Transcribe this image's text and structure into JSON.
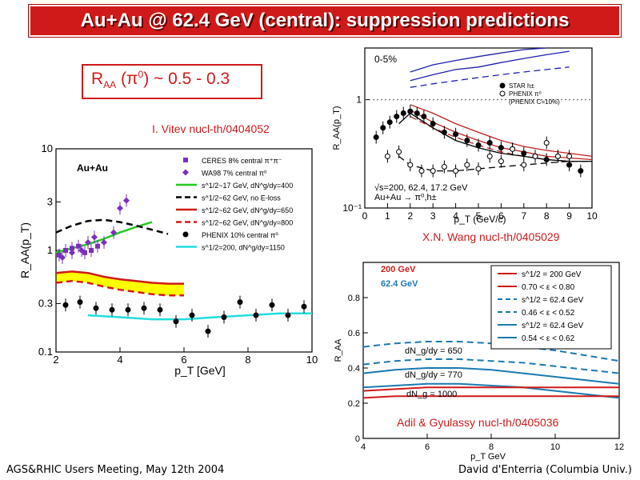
{
  "slide": {
    "title": "Au+Au @ 62.4 GeV (central): suppression predictions",
    "callout": {
      "base": "R",
      "sub": "AA",
      "paren": " (π",
      "sup": "0",
      "rest": ") ~ 0.5 - 0.3"
    },
    "ref_vitev": "I. Vitev nucl-th/0404052",
    "ref_wang": "X.N. Wang nucl-th/0405029",
    "ref_adil": "Adil & Gyulassy nucl-th/0405036",
    "footer_left": "AGS&RHIC Users Meeting, May 12th 2004",
    "footer_right": "David d'Enterria (Columbia Univ.)",
    "colors": {
      "accent": "#d01a1a",
      "title_text": "#ffffff"
    }
  },
  "chart_data": [
    {
      "type": "line",
      "panel": "vitev",
      "label": "Au+Au",
      "xlabel": "p_T [GeV]",
      "ylabel": "R_AA(p_T)",
      "x_ticks": [
        "2",
        "4",
        "6",
        "8",
        "10"
      ],
      "y_ticks": [
        "0.1",
        "0.3",
        "1",
        "3",
        "10"
      ],
      "xlim": [
        2,
        10
      ],
      "ylim": [
        0.1,
        10
      ],
      "yscale": "log",
      "legend": [
        {
          "text": "CERES 8% central π⁺π⁻",
          "color": "#7b2fbf",
          "marker": "square"
        },
        {
          "text": "WA98 7% central π⁰",
          "color": "#7b2fbf",
          "marker": "diamond"
        },
        {
          "text": "s^1/2~17 GeV, dN^g/dy=400",
          "color": "#22cc22",
          "style": "solid"
        },
        {
          "text": "s^1/2~62 GeV, no E-loss",
          "color": "#000000",
          "style": "dashed"
        },
        {
          "text": "s^1/2~62 GeV, dN^g/dy=650",
          "color": "#d01a1a",
          "style": "solid"
        },
        {
          "text": "s^1/2~62 GeV, dN^g/dy=800",
          "color": "#d01a1a",
          "style": "dashed"
        },
        {
          "text": "PHENIX 10% central π⁰",
          "color": "#000000",
          "marker": "circle"
        },
        {
          "text": "s^1/2=200, dN^g/dy=1150",
          "color": "#22dddd",
          "style": "solid"
        }
      ],
      "series": [
        {
          "x": [
            2.0,
            2.5,
            3.0,
            3.5,
            4.0,
            4.5,
            5.0
          ],
          "y": [
            0.95,
            1.05,
            1.15,
            1.3,
            1.5,
            1.7,
            1.9
          ],
          "color": "#22cc22",
          "style": "solid",
          "width": 2.5
        },
        {
          "x": [
            2.0,
            2.5,
            3.0,
            3.5,
            4.0,
            4.5,
            5.0,
            5.5
          ],
          "y": [
            1.5,
            1.75,
            1.95,
            2.0,
            1.9,
            1.75,
            1.6,
            1.45
          ],
          "color": "#000000",
          "style": "dashed",
          "width": 2.5
        },
        {
          "x": [
            2.0,
            2.5,
            3.0,
            3.5,
            4.0,
            4.5,
            5.0,
            5.5,
            6.0
          ],
          "y": [
            0.6,
            0.62,
            0.6,
            0.55,
            0.52,
            0.5,
            0.48,
            0.47,
            0.47
          ],
          "color": "#d01a1a",
          "style": "solid",
          "width": 2.5
        },
        {
          "x": [
            2.0,
            2.5,
            3.0,
            3.5,
            4.0,
            4.5,
            5.0,
            5.5,
            6.0
          ],
          "y": [
            0.48,
            0.5,
            0.48,
            0.44,
            0.41,
            0.39,
            0.37,
            0.36,
            0.36
          ],
          "color": "#d01a1a",
          "style": "dashed",
          "width": 2.5
        },
        {
          "x": [
            3.0,
            4.0,
            5.0,
            6.0,
            7.0,
            8.0,
            9.0,
            10.0
          ],
          "y": [
            0.23,
            0.22,
            0.21,
            0.21,
            0.22,
            0.23,
            0.24,
            0.24
          ],
          "color": "#22dddd",
          "style": "solid",
          "width": 2.5
        }
      ],
      "band": {
        "x": [
          2.0,
          2.5,
          3.0,
          3.5,
          4.0,
          4.5,
          5.0,
          5.5,
          6.0
        ],
        "upper": [
          0.6,
          0.62,
          0.6,
          0.55,
          0.52,
          0.5,
          0.48,
          0.47,
          0.47
        ],
        "lower": [
          0.48,
          0.5,
          0.48,
          0.44,
          0.41,
          0.39,
          0.37,
          0.36,
          0.36
        ],
        "color": "#ffff00"
      },
      "points": [
        {
          "x": [
            2.1,
            2.3,
            2.5,
            2.7,
            2.9,
            3.1,
            3.3
          ],
          "y": [
            0.9,
            1.0,
            1.05,
            1.1,
            0.95,
            1.0,
            1.1
          ],
          "color": "#7b2fbf",
          "marker": "square"
        },
        {
          "x": [
            2.2,
            2.5,
            2.8,
            3.0,
            3.2,
            3.5,
            3.8,
            4.0,
            4.2
          ],
          "y": [
            0.85,
            0.95,
            1.0,
            1.2,
            1.35,
            1.2,
            1.5,
            2.6,
            3.1
          ],
          "color": "#7b2fbf",
          "marker": "diamond"
        },
        {
          "x": [
            2.3,
            2.75,
            3.25,
            3.75,
            4.25,
            4.75,
            5.25,
            5.75,
            6.25,
            6.75,
            7.25,
            7.75,
            8.25,
            8.75,
            9.25,
            9.75
          ],
          "y": [
            0.29,
            0.31,
            0.27,
            0.26,
            0.26,
            0.27,
            0.26,
            0.2,
            0.23,
            0.16,
            0.22,
            0.31,
            0.23,
            0.29,
            0.23,
            0.28
          ],
          "color": "#000000",
          "marker": "circle"
        }
      ]
    },
    {
      "type": "line",
      "panel": "wang",
      "label": "0-5%",
      "xlabel": "p_T (GeV/c)",
      "ylabel": "R_AA(p_T)",
      "x_ticks": [
        "0",
        "1",
        "2",
        "3",
        "4",
        "5",
        "6",
        "7",
        "8",
        "9",
        "10"
      ],
      "y_ticks": [
        "10⁻¹",
        "1"
      ],
      "xlim": [
        0,
        10
      ],
      "ylim": [
        0.1,
        3
      ],
      "yscale": "log",
      "legend": [
        {
          "text": "STAR h±",
          "color": "#000000",
          "marker": "circle"
        },
        {
          "text": "PHENIX π⁰",
          "color": "#000000",
          "marker": "open-circle"
        },
        {
          "text": "(PHENIX C=10%)",
          "color": "#000000"
        }
      ],
      "annotation": "√s=200, 62.4, 17.2 GeV",
      "annotation2": "Au+Au → π⁰,h±",
      "series": [
        {
          "x": [
            2,
            3,
            4,
            5,
            6,
            7,
            8
          ],
          "y": [
            1.8,
            2.1,
            2.3,
            2.5,
            2.7,
            2.9,
            3.0
          ],
          "color": "#2020b0",
          "style": "solid"
        },
        {
          "x": [
            2,
            3,
            4,
            5,
            6,
            7,
            8,
            9
          ],
          "y": [
            1.5,
            1.7,
            1.9,
            2.0,
            2.2,
            2.4,
            2.6,
            2.8
          ],
          "color": "#2020b0",
          "style": "solid"
        },
        {
          "x": [
            2,
            3,
            4,
            5,
            6,
            7,
            8,
            9
          ],
          "y": [
            1.3,
            1.4,
            1.5,
            1.6,
            1.7,
            1.8,
            1.9,
            2.0
          ],
          "color": "#2020b0",
          "style": "dashed"
        },
        {
          "x": [
            2,
            3,
            4,
            5,
            6,
            7,
            8,
            9,
            10
          ],
          "y": [
            0.9,
            0.75,
            0.6,
            0.5,
            0.42,
            0.37,
            0.34,
            0.32,
            0.3
          ],
          "color": "#c02020",
          "style": "solid"
        },
        {
          "x": [
            2,
            3,
            4,
            5,
            6,
            7,
            8,
            9,
            10
          ],
          "y": [
            0.8,
            0.62,
            0.5,
            0.42,
            0.36,
            0.33,
            0.3,
            0.29,
            0.28
          ],
          "color": "#c02020",
          "style": "solid"
        },
        {
          "x": [
            2,
            3,
            4,
            5,
            6,
            7,
            8,
            9,
            10
          ],
          "y": [
            0.7,
            0.55,
            0.45,
            0.38,
            0.33,
            0.3,
            0.28,
            0.27,
            0.27
          ],
          "color": "#c02020",
          "style": "dashed"
        },
        {
          "x": [
            1.5,
            2,
            3,
            4,
            5,
            6,
            7,
            8,
            9,
            10
          ],
          "y": [
            0.6,
            0.75,
            0.55,
            0.42,
            0.36,
            0.32,
            0.3,
            0.28,
            0.27,
            0.27
          ],
          "color": "#000000",
          "style": "solid"
        },
        {
          "x": [
            1.5,
            2,
            3,
            4,
            5,
            6,
            7,
            8,
            9,
            10
          ],
          "y": [
            0.3,
            0.25,
            0.22,
            0.22,
            0.23,
            0.24,
            0.25,
            0.26,
            0.27,
            0.27
          ],
          "color": "#000000",
          "style": "dashed"
        }
      ],
      "points": [
        {
          "x": [
            0.5,
            0.8,
            1.1,
            1.4,
            1.7,
            2.0,
            2.3,
            2.6,
            3.0,
            3.5,
            4.0,
            4.5,
            5.0,
            5.5,
            6.0,
            6.5,
            7.0,
            7.5,
            8.0,
            8.5,
            9.0,
            9.5
          ],
          "y": [
            0.45,
            0.55,
            0.62,
            0.7,
            0.75,
            0.78,
            0.75,
            0.7,
            0.6,
            0.5,
            0.48,
            0.42,
            0.38,
            0.4,
            0.36,
            0.35,
            0.32,
            0.3,
            0.28,
            0.3,
            0.25,
            0.22
          ],
          "color": "#000000",
          "marker": "circle"
        },
        {
          "x": [
            1.0,
            1.5,
            2.0,
            2.5,
            3.0,
            3.5,
            4.0,
            4.5,
            5.0,
            5.5,
            6.0,
            6.5,
            7.0,
            7.5,
            8.0,
            8.5,
            9.0
          ],
          "y": [
            0.3,
            0.33,
            0.25,
            0.22,
            0.22,
            0.24,
            0.22,
            0.25,
            0.23,
            0.3,
            0.27,
            0.35,
            0.25,
            0.3,
            0.4,
            0.3,
            0.3
          ],
          "color": "#000000",
          "marker": "open-circle"
        }
      ]
    },
    {
      "type": "line",
      "panel": "adil",
      "xlabel": "p_T GeV",
      "ylabel": "R_AA",
      "x_ticks": [
        "4",
        "6",
        "8",
        "10",
        "12"
      ],
      "y_ticks": [
        "0",
        "0.2",
        "0.4",
        "0.6",
        "0.8"
      ],
      "xlim": [
        4,
        12
      ],
      "ylim": [
        0,
        1
      ],
      "yscale": "linear",
      "header_red": "200 GeV",
      "header_blue": "62.4 GeV",
      "legend": [
        {
          "text": "s^1/2 = 200 GeV",
          "color": "#d01a1a",
          "style": "solid"
        },
        {
          "text": "0.70 < ε < 0.80",
          "color": "#d01a1a",
          "style": "solid"
        },
        {
          "text": "s^1/2 = 62.4 GeV",
          "color": "#1a7ab0",
          "style": "dashed"
        },
        {
          "text": "0.46 < ε < 0.52",
          "color": "#1a7ab0",
          "style": "dashed"
        },
        {
          "text": "s^1/2 = 62.4 GeV",
          "color": "#1a7ab0",
          "style": "solid"
        },
        {
          "text": "0.54 < ε < 0.62",
          "color": "#1a7ab0",
          "style": "solid"
        }
      ],
      "labels": [
        "dN_g/dy = 650",
        "dN_g/dy = 770",
        "dN_g = 1000"
      ],
      "series": [
        {
          "x": [
            4,
            5,
            6,
            7,
            8,
            9,
            10,
            11,
            12
          ],
          "y": [
            0.52,
            0.54,
            0.55,
            0.55,
            0.54,
            0.52,
            0.5,
            0.47,
            0.44
          ],
          "color": "#1a7ab0",
          "style": "dashed"
        },
        {
          "x": [
            4,
            5,
            6,
            7,
            8,
            9,
            10,
            11,
            12
          ],
          "y": [
            0.42,
            0.44,
            0.45,
            0.45,
            0.44,
            0.43,
            0.41,
            0.39,
            0.37
          ],
          "color": "#1a7ab0",
          "style": "dashed"
        },
        {
          "x": [
            4,
            5,
            6,
            7,
            8,
            9,
            10,
            11,
            12
          ],
          "y": [
            0.37,
            0.39,
            0.4,
            0.4,
            0.39,
            0.37,
            0.35,
            0.33,
            0.31
          ],
          "color": "#1a7ab0",
          "style": "solid"
        },
        {
          "x": [
            4,
            5,
            6,
            7,
            8,
            9,
            10,
            11,
            12
          ],
          "y": [
            0.29,
            0.3,
            0.31,
            0.31,
            0.3,
            0.29,
            0.27,
            0.25,
            0.23
          ],
          "color": "#1a7ab0",
          "style": "solid"
        },
        {
          "x": [
            4,
            5,
            6,
            7,
            8,
            9,
            10,
            11,
            12
          ],
          "y": [
            0.27,
            0.28,
            0.29,
            0.29,
            0.29,
            0.29,
            0.29,
            0.29,
            0.29
          ],
          "color": "#d01a1a",
          "style": "solid"
        },
        {
          "x": [
            4,
            5,
            6,
            7,
            8,
            9,
            10,
            11,
            12
          ],
          "y": [
            0.23,
            0.24,
            0.24,
            0.24,
            0.24,
            0.24,
            0.24,
            0.24,
            0.24
          ],
          "color": "#d01a1a",
          "style": "solid"
        }
      ]
    }
  ]
}
